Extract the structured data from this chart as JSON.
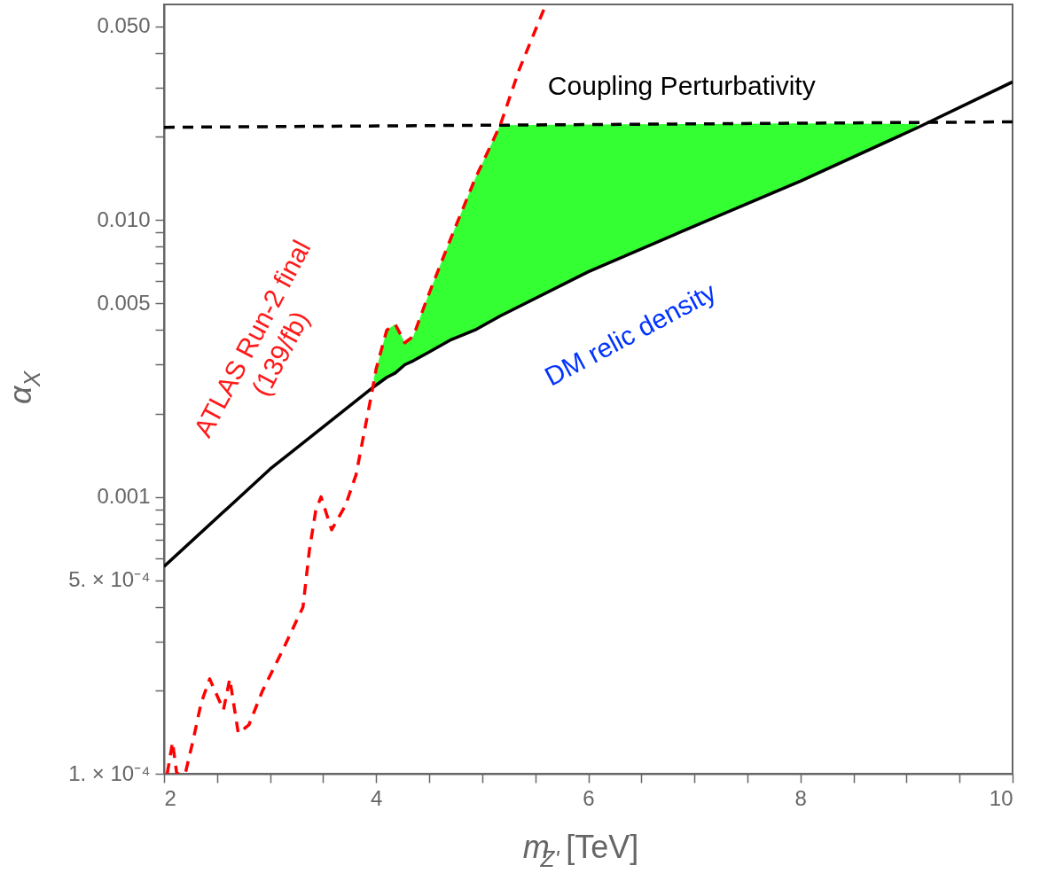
{
  "chart_data": {
    "type": "line",
    "xlabel": "m$_{Z'}$[TeV]",
    "ylabel": "α$_{X}$",
    "log": "y",
    "grid": false,
    "marker": "none",
    "xlim": [
      2,
      10
    ],
    "ylim": [
      0.0001,
      0.06
    ],
    "xticks": [
      2,
      {
        "value": 2.5,
        "label": null
      },
      {
        "value": 3,
        "label": null
      },
      {
        "value": 3.5,
        "label": null
      },
      4,
      {
        "value": 4.5,
        "label": null
      },
      {
        "value": 5,
        "label": null
      },
      {
        "value": 5.5,
        "label": null
      },
      6,
      {
        "value": 6.5,
        "label": null
      },
      {
        "value": 7,
        "label": null
      },
      {
        "value": 7.5,
        "label": null
      },
      8,
      {
        "value": 8.5,
        "label": null
      },
      {
        "value": 9,
        "label": null
      },
      {
        "value": 9.5,
        "label": null
      },
      10
    ],
    "yticks": [
      {
        "value": 0.0001,
        "label": "1. × 10⁻⁴"
      },
      {
        "value": 0.0002,
        "label": null
      },
      {
        "value": 0.0003,
        "label": null
      },
      {
        "value": 0.0004,
        "label": null
      },
      {
        "value": 0.0005,
        "label": "5. × 10⁻⁴"
      },
      {
        "value": 0.0006,
        "label": null
      },
      {
        "value": 0.0007,
        "label": null
      },
      {
        "value": 0.0008,
        "label": null
      },
      {
        "value": 0.0009,
        "label": null
      },
      {
        "value": 0.001,
        "label": "0.001"
      },
      {
        "value": 0.002,
        "label": null
      },
      {
        "value": 0.003,
        "label": null
      },
      {
        "value": 0.004,
        "label": null
      },
      {
        "value": 0.005,
        "label": "0.005"
      },
      {
        "value": 0.006,
        "label": null
      },
      {
        "value": 0.007,
        "label": null
      },
      {
        "value": 0.008,
        "label": null
      },
      {
        "value": 0.009,
        "label": null
      },
      {
        "value": 0.01,
        "label": "0.010"
      },
      {
        "value": 0.02,
        "label": null
      },
      {
        "value": 0.03,
        "label": null
      },
      {
        "value": 0.04,
        "label": null
      },
      {
        "value": 0.05,
        "label": "0.050"
      }
    ],
    "series": [
      {
        "color": "#000000",
        "line_style": "solid",
        "x": [
          2,
          3,
          3.98,
          4.1,
          4.18,
          4.27,
          4.35,
          4.48,
          4.71,
          4.93,
          5.17,
          6,
          7,
          8,
          9.1,
          10
        ],
        "values": [
          0.00056,
          0.00126,
          0.0025,
          0.0027,
          0.0028,
          0.003,
          0.0031,
          0.0033,
          0.0037,
          0.004,
          0.0045,
          0.0065,
          0.0095,
          0.0138,
          0.0215,
          0.0315
        ],
        "lower": [
          null,
          null,
          0.0025,
          0.0027,
          0.0028,
          0.003,
          0.0031,
          0.0033,
          0.0037,
          0.004,
          0.0045,
          0.0065,
          0.0095,
          0.0138,
          0.0215,
          null
        ],
        "upper": [
          null,
          null,
          0.0027,
          0.004,
          0.0042,
          0.0036,
          0.0038,
          0.0052,
          0.0087,
          0.014,
          0.022,
          0.0221,
          0.0222,
          0.0223,
          0.0222,
          null
        ]
      },
      {
        "color": "#000000",
        "line_style": "dashed",
        "x": [
          2,
          10
        ],
        "values": [
          0.0216,
          0.0226
        ]
      },
      {
        "color": "#ff0000",
        "line_style": "dashed",
        "x": [
          2.03,
          2.08,
          2.12,
          2.2,
          2.27,
          2.35,
          2.43,
          2.56,
          2.62,
          2.7,
          2.8,
          2.93,
          3.12,
          3.31,
          3.37,
          3.43,
          3.48,
          3.58,
          3.71,
          3.81,
          3.97,
          4.0,
          4.1,
          4.18,
          4.27,
          4.35,
          4.48,
          4.71,
          4.93,
          5.17,
          5.35,
          5.6
        ],
        "values": [
          0.0001,
          0.00013,
          0.0001,
          0.0001,
          0.00013,
          0.00018,
          0.00022,
          0.00017,
          0.00022,
          0.00014,
          0.00015,
          0.0002,
          0.00028,
          0.0004,
          0.00064,
          0.00089,
          0.001,
          0.00076,
          0.00093,
          0.0012,
          0.0025,
          0.0029,
          0.004,
          0.0042,
          0.0036,
          0.0038,
          0.0052,
          0.0087,
          0.014,
          0.022,
          0.035,
          0.06
        ]
      }
    ],
    "annotations": [
      "Coupling Perturbativity",
      "DM relic density",
      "ATLAS Run-2 final\n(139/fb)"
    ]
  }
}
